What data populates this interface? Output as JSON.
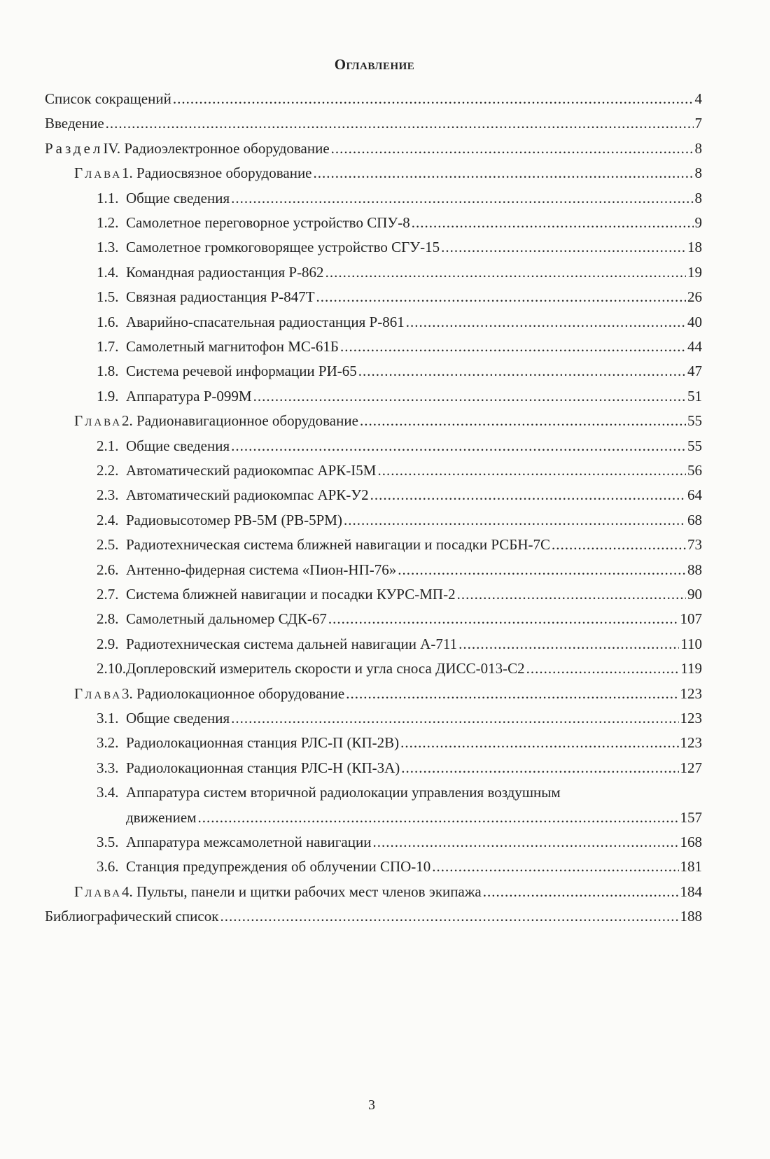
{
  "title": "Оглавление",
  "entries": [
    {
      "level": 0,
      "title": "Список сокращений",
      "page": "4"
    },
    {
      "level": 0,
      "title": "Введение ",
      "page": "7"
    },
    {
      "level": 0,
      "prefix": "Раздел",
      "title": " IV. Радиоэлектронное оборудование",
      "page": "8"
    },
    {
      "level": 1,
      "prefix": "Глава",
      "title": " 1. Радиосвязное оборудование",
      "page": "8"
    },
    {
      "level": 2,
      "num": "1.1.",
      "title": "Общие сведения ",
      "page": "8"
    },
    {
      "level": 2,
      "num": "1.2.",
      "title": "Самолетное переговорное устройство СПУ-8 ",
      "page": "9"
    },
    {
      "level": 2,
      "num": "1.3.",
      "title": "Самолетное громкоговорящее устройство СГУ-15 ",
      "page": "18"
    },
    {
      "level": 2,
      "num": "1.4.",
      "title": "Командная радиостанция Р-862",
      "page": "19"
    },
    {
      "level": 2,
      "num": "1.5.",
      "title": "Связная радиостанция Р-847Т ",
      "page": "26"
    },
    {
      "level": 2,
      "num": "1.6.",
      "title": "Аварийно-спасательная радиостанция Р-861 ",
      "page": "40"
    },
    {
      "level": 2,
      "num": "1.7.",
      "title": "Самолетный магнитофон МС-61Б",
      "page": "44"
    },
    {
      "level": 2,
      "num": "1.8.",
      "title": "Система речевой информации РИ-65 ",
      "page": "47"
    },
    {
      "level": 2,
      "num": "1.9.",
      "title": "Аппаратура Р-099М",
      "page": "51"
    },
    {
      "level": 1,
      "prefix": "Глава",
      "title": " 2. Радионавигационное оборудование ",
      "page": "55"
    },
    {
      "level": 2,
      "num": "2.1.",
      "title": "Общие сведения ",
      "page": "55"
    },
    {
      "level": 2,
      "num": "2.2.",
      "title": "Автоматический радиокомпас АРК-I5М ",
      "page": "56"
    },
    {
      "level": 2,
      "num": "2.3.",
      "title": "Автоматический радиокомпас АРК-У2",
      "page": "64"
    },
    {
      "level": 2,
      "num": "2.4.",
      "title": "Радиовысотомер РВ-5М (РВ-5РМ)",
      "page": "68"
    },
    {
      "level": 2,
      "num": "2.5.",
      "title": "Радиотехническая система ближней навигации и посадки РСБН-7С",
      "page": "73"
    },
    {
      "level": 2,
      "num": "2.6.",
      "title": "Антенно-фидерная система «Пион-НП-76»",
      "page": "88"
    },
    {
      "level": 2,
      "num": "2.7.",
      "title": "Система ближней навигации и посадки КУРС-МП-2 ",
      "page": "90"
    },
    {
      "level": 2,
      "num": "2.8.",
      "title": "Самолетный дальномер СДК-67",
      "page": "107"
    },
    {
      "level": 2,
      "num": "2.9.",
      "title": "Радиотехническая система дальней навигации А-711 ",
      "page": "110"
    },
    {
      "level": 2,
      "num": "2.10.",
      "title": "Доплеровский измеритель скорости и угла сноса ДИСС-013-С2 ",
      "page": "119"
    },
    {
      "level": 1,
      "prefix": "Глава",
      "title": " 3. Радиолокационное оборудование",
      "page": "123"
    },
    {
      "level": 2,
      "num": "3.1.",
      "title": "Общие сведения ",
      "page": "123"
    },
    {
      "level": 2,
      "num": "3.2.",
      "title": "Радиолокационная станция РЛС-П (КП-2В)",
      "page": "123"
    },
    {
      "level": 2,
      "num": "3.3.",
      "title": "Радиолокационная станция РЛС-Н (КП-3А)",
      "page": "127"
    },
    {
      "level": 2,
      "num": "3.4.",
      "title": "Аппаратура систем вторичной радиолокации  управления воздушным",
      "title_cont": "движением ",
      "page": "157"
    },
    {
      "level": 2,
      "num": "3.5.",
      "title": "Аппаратура межсамолетной навигации ",
      "page": "168"
    },
    {
      "level": 2,
      "num": "3.6.",
      "title": "Станция предупреждения об облучении СПО-10",
      "page": "181"
    },
    {
      "level": 1,
      "prefix": "Глава",
      "title": " 4. Пульты, панели и щитки  рабочих мест членов экипажа",
      "page": "184"
    },
    {
      "level": 0,
      "title": "Библиографический список ",
      "page": "188"
    }
  ],
  "folio": "3"
}
